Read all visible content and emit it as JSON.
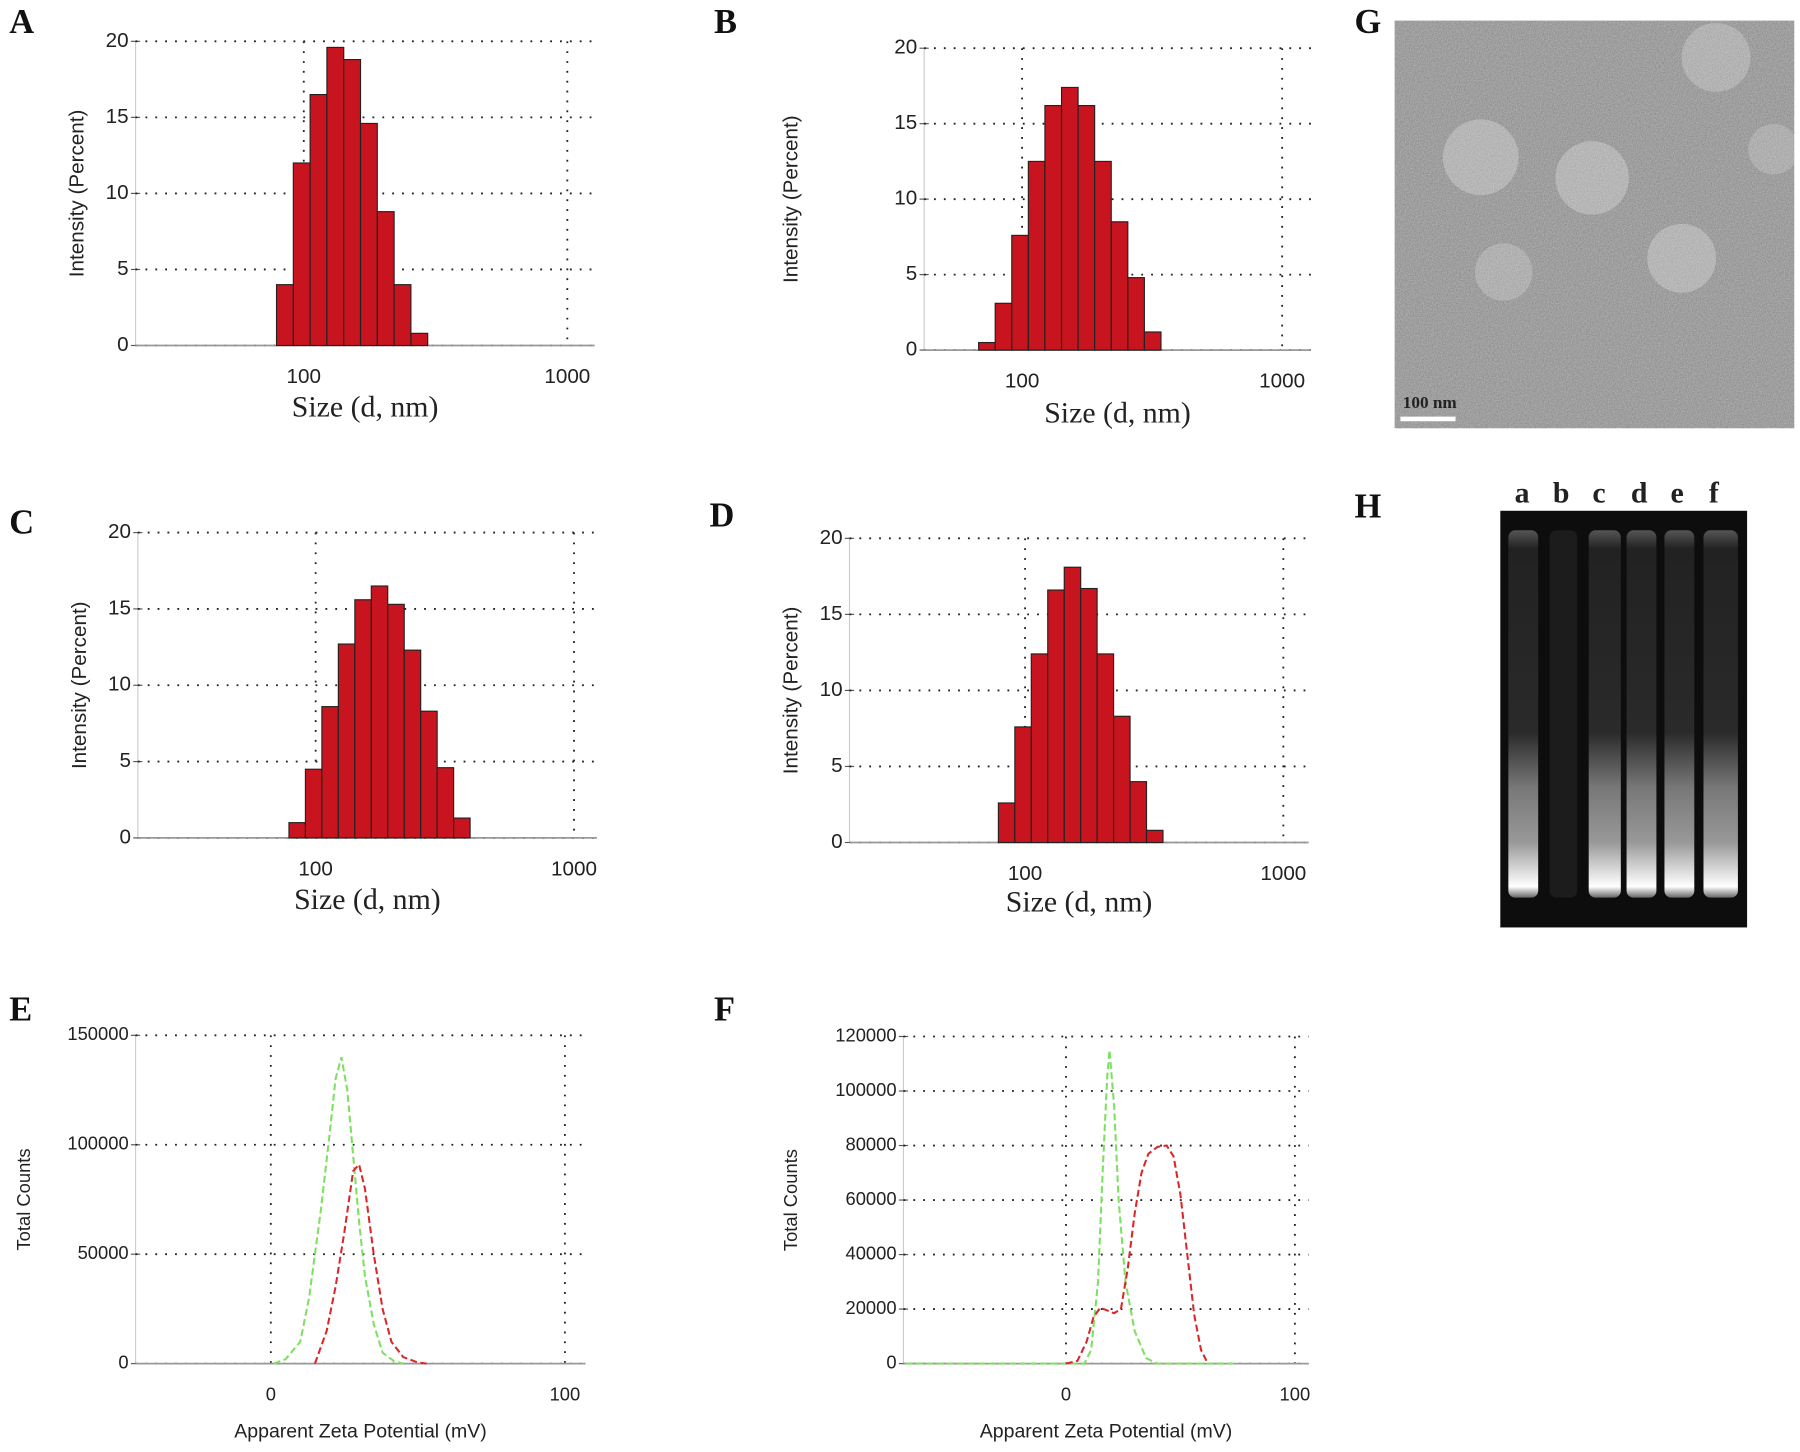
{
  "chart_data": [
    {
      "type": "histogram",
      "panel_label": "A",
      "x_label": "Size (d, nm)",
      "y_label": "Intensity (Percent)",
      "xscale": "log",
      "grid": true,
      "color": "#c8141e",
      "bins": [
        78.82,
        91.28,
        105.7,
        122.4,
        141.8,
        164.2,
        190.1,
        220.2,
        255.0,
        295.3
      ],
      "values": [
        4,
        12,
        16.5,
        19.6,
        18.8,
        14.6,
        8.8,
        4,
        0.8
      ],
      "xlim": [
        23,
        1270
      ],
      "xticks": [
        100,
        1000
      ],
      "ylim": [
        0,
        20
      ],
      "yticks": [
        0,
        5,
        10,
        15,
        20
      ]
    },
    {
      "type": "histogram",
      "panel_label": "B",
      "x_label": "Size (d, nm)",
      "y_label": "Intensity (Percent)",
      "xscale": "log",
      "grid": true,
      "color": "#c8141e",
      "bins": [
        68.06,
        78.82,
        91.28,
        105.7,
        122.4,
        141.8,
        164.2,
        190.1,
        220.2,
        255.0,
        295.3,
        342.0
      ],
      "values": [
        0.5,
        3.1,
        7.6,
        12.5,
        16.2,
        17.4,
        16.2,
        12.5,
        8.5,
        4.8,
        1.2
      ],
      "xlim": [
        42,
        1290
      ],
      "xticks": [
        100,
        1000
      ],
      "ylim": [
        0,
        20
      ],
      "yticks": [
        0,
        5,
        10,
        15,
        20
      ]
    },
    {
      "type": "histogram",
      "panel_label": "C",
      "x_label": "Size (d, nm)",
      "y_label": "Intensity (Percent)",
      "xscale": "log",
      "grid": true,
      "color": "#c8141e",
      "bins": [
        78.82,
        91.28,
        105.7,
        122.4,
        141.8,
        164.2,
        190.1,
        220.2,
        255.0,
        295.3,
        342.0,
        396.1
      ],
      "values": [
        1.0,
        4.5,
        8.6,
        12.7,
        15.6,
        16.5,
        15.3,
        12.3,
        8.3,
        4.6,
        1.3
      ],
      "xlim": [
        20.5,
        1227
      ],
      "xticks": [
        100,
        1000
      ],
      "ylim": [
        0,
        20
      ],
      "yticks": [
        0,
        5,
        10,
        15,
        20
      ]
    },
    {
      "type": "histogram",
      "panel_label": "D",
      "x_label": "Size (d, nm)",
      "y_label": "Intensity (Percent)",
      "xscale": "log",
      "grid": true,
      "color": "#c8141e",
      "bins": [
        78.82,
        91.28,
        105.7,
        122.4,
        141.8,
        164.2,
        190.1,
        220.2,
        255.0,
        295.3,
        342.0
      ],
      "values": [
        2.6,
        7.6,
        12.4,
        16.6,
        18.1,
        16.7,
        12.4,
        8.3,
        4.0,
        0.8
      ],
      "xlim": [
        20.9,
        1253
      ],
      "xticks": [
        100,
        1000
      ],
      "ylim": [
        0,
        20
      ],
      "yticks": [
        0,
        5,
        10,
        15,
        20
      ]
    },
    {
      "type": "line",
      "panel_label": "E",
      "x_label": "Apparent Zeta Potential (mV)",
      "y_label": "Total Counts",
      "grid": true,
      "series": [
        {
          "color": "#7ee060",
          "x": [
            1,
            5,
            10,
            13,
            17,
            20,
            22,
            24,
            26,
            28,
            30,
            32,
            35,
            38,
            42,
            45
          ],
          "values": [
            0,
            2000,
            10000,
            30000,
            70000,
            105000,
            130000,
            140000,
            125000,
            95000,
            65000,
            40000,
            18000,
            5000,
            1000,
            0
          ]
        },
        {
          "color": "#d8282a",
          "x": [
            15,
            19,
            22,
            25,
            28,
            30,
            32,
            35,
            38,
            41,
            45,
            50,
            53
          ],
          "values": [
            0,
            15000,
            35000,
            60000,
            88000,
            91000,
            80000,
            50000,
            25000,
            10000,
            3000,
            500,
            0
          ]
        }
      ],
      "xlim": [
        -46,
        107
      ],
      "xticks": [
        0,
        100
      ],
      "ylim": [
        0,
        150000
      ],
      "yticks": [
        0,
        50000,
        100000,
        150000
      ]
    },
    {
      "type": "line",
      "panel_label": "F",
      "x_label": "Apparent Zeta Potential (mV)",
      "y_label": "Total Counts",
      "grid": true,
      "series": [
        {
          "color": "#7ee060",
          "x": [
            -70,
            0,
            8,
            11,
            14,
            16,
            18,
            19,
            21,
            23,
            26,
            30,
            35,
            40,
            75
          ],
          "values": [
            0,
            0,
            0,
            5000,
            30000,
            70000,
            105000,
            115000,
            95000,
            60000,
            30000,
            12000,
            2000,
            0,
            0
          ]
        },
        {
          "color": "#d8282a",
          "x": [
            0,
            5,
            9,
            12,
            15,
            18,
            21,
            24,
            27,
            30,
            33,
            36,
            40,
            44,
            47,
            50,
            53,
            56,
            59,
            62
          ],
          "values": [
            0,
            1000,
            8000,
            17000,
            20500,
            19500,
            18500,
            20000,
            35000,
            55000,
            70000,
            77000,
            79500,
            80000,
            76000,
            62000,
            40000,
            18000,
            5000,
            0
          ]
        }
      ],
      "xlim": [
        -71,
        106
      ],
      "xticks": [
        0,
        100
      ],
      "ylim": [
        0,
        120000
      ],
      "yticks": [
        0,
        20000,
        40000,
        60000,
        80000,
        100000,
        120000
      ]
    }
  ],
  "images": [
    {
      "panel_label": "G",
      "scale_bar": "100 nm"
    },
    {
      "panel_label": "H",
      "lanes": [
        "a",
        "b",
        "c",
        "d",
        "e",
        "f"
      ]
    }
  ]
}
